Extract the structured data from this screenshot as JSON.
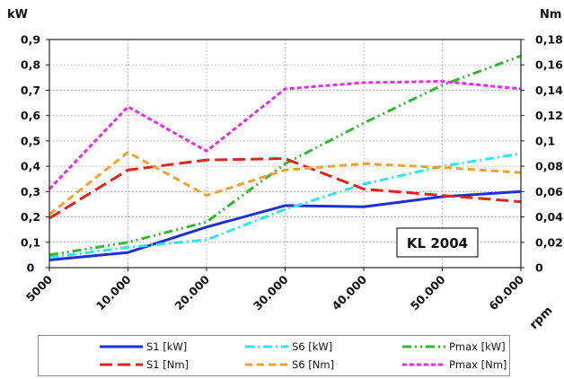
{
  "chart_data": {
    "type": "line",
    "title": "",
    "xlabel": "rpm",
    "ylabel_left": "kW",
    "ylabel_right": "Nm",
    "categories": [
      "5000",
      "10.000",
      "20.000",
      "30.000",
      "40.000",
      "50.000",
      "60.000"
    ],
    "ylim_left": [
      0,
      0.9
    ],
    "ylim_right": [
      0,
      0.18
    ],
    "yticks_left": [
      "0",
      "0,1",
      "0,2",
      "0,3",
      "0,4",
      "0,5",
      "0,6",
      "0,7",
      "0,8",
      "0,9"
    ],
    "yticks_right": [
      "0",
      "0,02",
      "0,04",
      "0,06",
      "0,08",
      "0,1",
      "0,12",
      "0,14",
      "0,16",
      "0,18"
    ],
    "grid": true,
    "annotation": "KL 2004",
    "legend_position": "bottom",
    "series": [
      {
        "name": "S1 [kW]",
        "axis": "left",
        "color": "#1f2fd6",
        "style": "solid",
        "values": [
          0.03,
          0.06,
          0.16,
          0.245,
          0.24,
          0.28,
          0.3
        ]
      },
      {
        "name": "S6 [kW]",
        "axis": "left",
        "color": "#2ee6f0",
        "style": "dashdot",
        "values": [
          0.04,
          0.08,
          0.11,
          0.23,
          0.33,
          0.4,
          0.45
        ]
      },
      {
        "name": "Pmax [kW]",
        "axis": "left",
        "color": "#2fb82f",
        "style": "dashdotdot",
        "values": [
          0.05,
          0.1,
          0.18,
          0.41,
          0.57,
          0.72,
          0.835
        ]
      },
      {
        "name": "S1 [Nm]",
        "axis": "right",
        "color": "#e0261c",
        "style": "longdash",
        "values": [
          0.039,
          0.077,
          0.085,
          0.086,
          0.062,
          0.057,
          0.052
        ]
      },
      {
        "name": "S6 [Nm]",
        "axis": "right",
        "color": "#f5a028",
        "style": "dash",
        "values": [
          0.042,
          0.091,
          0.057,
          0.077,
          0.082,
          0.079,
          0.075
        ]
      },
      {
        "name": "Pmax [Nm]",
        "axis": "right",
        "color": "#e62ee6",
        "style": "shortdash",
        "values": [
          0.062,
          0.127,
          0.092,
          0.141,
          0.146,
          0.147,
          0.141
        ]
      }
    ]
  }
}
